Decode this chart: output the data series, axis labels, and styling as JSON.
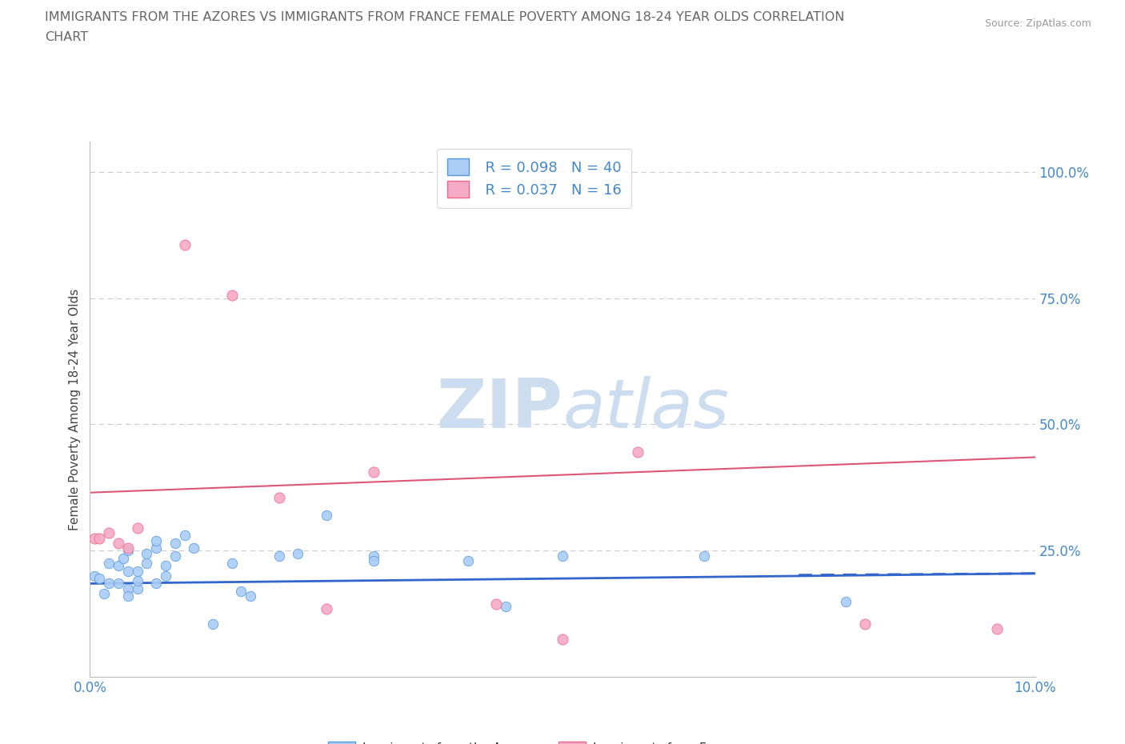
{
  "title_line1": "IMMIGRANTS FROM THE AZORES VS IMMIGRANTS FROM FRANCE FEMALE POVERTY AMONG 18-24 YEAR OLDS CORRELATION",
  "title_line2": "CHART",
  "source": "Source: ZipAtlas.com",
  "ylabel": "Female Poverty Among 18-24 Year Olds",
  "xlim": [
    0.0,
    0.1
  ],
  "ylim": [
    0.0,
    1.06
  ],
  "watermark_zip": "ZIP",
  "watermark_atlas": "atlas",
  "legend_R1": "R = 0.098",
  "legend_N1": "N = 40",
  "legend_R2": "R = 0.037",
  "legend_N2": "N = 16",
  "azores_color": "#aaccf5",
  "france_color": "#f5aac5",
  "azores_edge_color": "#5599dd",
  "france_edge_color": "#ee6688",
  "azores_line_color": "#3366cc",
  "france_line_color": "#dd5577",
  "azores_scatter_x": [
    0.0005,
    0.001,
    0.0015,
    0.002,
    0.002,
    0.003,
    0.003,
    0.0035,
    0.004,
    0.004,
    0.004,
    0.004,
    0.005,
    0.005,
    0.005,
    0.006,
    0.006,
    0.007,
    0.007,
    0.007,
    0.008,
    0.008,
    0.009,
    0.009,
    0.01,
    0.011,
    0.013,
    0.015,
    0.016,
    0.017,
    0.02,
    0.022,
    0.025,
    0.03,
    0.03,
    0.04,
    0.044,
    0.05,
    0.065,
    0.08
  ],
  "azores_scatter_y": [
    0.2,
    0.195,
    0.165,
    0.225,
    0.185,
    0.22,
    0.185,
    0.235,
    0.25,
    0.21,
    0.175,
    0.16,
    0.21,
    0.175,
    0.19,
    0.225,
    0.245,
    0.185,
    0.255,
    0.27,
    0.22,
    0.2,
    0.24,
    0.265,
    0.28,
    0.255,
    0.105,
    0.225,
    0.17,
    0.16,
    0.24,
    0.245,
    0.32,
    0.24,
    0.23,
    0.23,
    0.14,
    0.24,
    0.24,
    0.15
  ],
  "france_scatter_x": [
    0.0005,
    0.001,
    0.002,
    0.003,
    0.004,
    0.005,
    0.01,
    0.015,
    0.02,
    0.025,
    0.03,
    0.043,
    0.05,
    0.058,
    0.082,
    0.096
  ],
  "france_scatter_y": [
    0.275,
    0.275,
    0.285,
    0.265,
    0.255,
    0.295,
    0.855,
    0.755,
    0.355,
    0.135,
    0.405,
    0.145,
    0.075,
    0.445,
    0.105,
    0.095
  ],
  "azores_trend_x": [
    0.0,
    0.1
  ],
  "azores_trend_y": [
    0.185,
    0.205
  ],
  "france_trend_x": [
    0.0,
    0.1
  ],
  "france_trend_y": [
    0.365,
    0.435
  ],
  "background_color": "#ffffff",
  "grid_color": "#cccccc",
  "title_color": "#666666",
  "tick_color": "#4488cc",
  "watermark_color": "#ccddf0",
  "title_fontsize": 11.5,
  "tick_fontsize": 12,
  "ylabel_fontsize": 11
}
